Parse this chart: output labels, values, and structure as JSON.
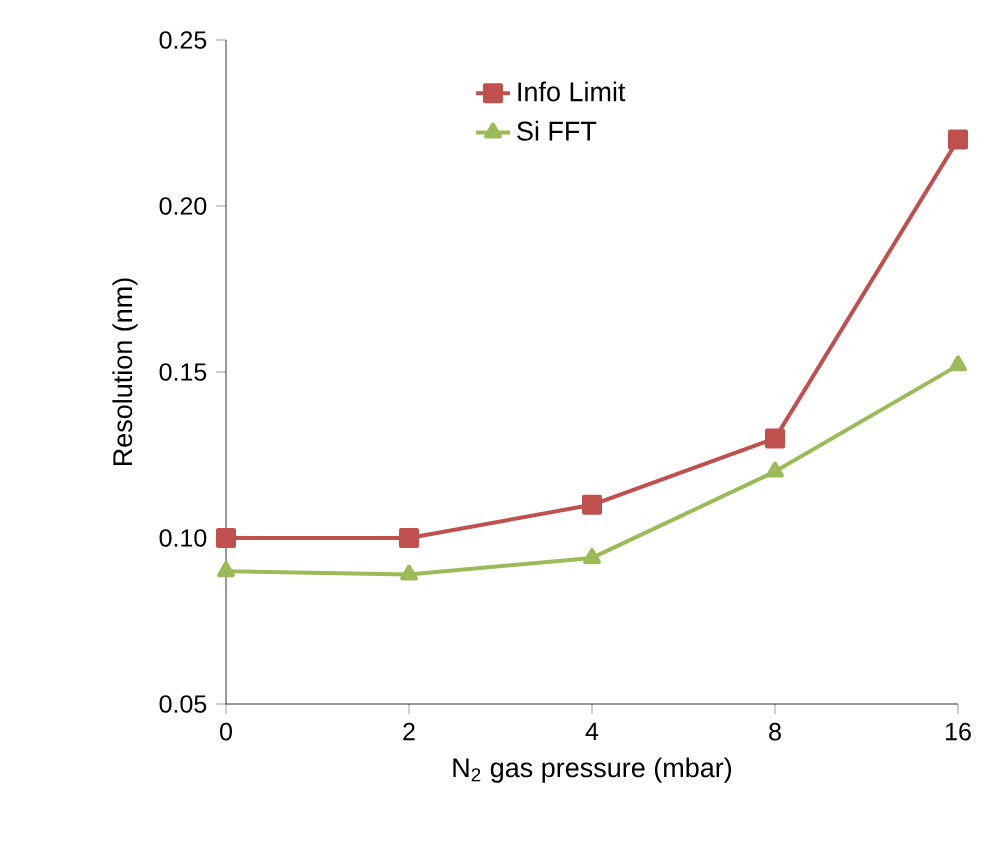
{
  "chart_data": {
    "type": "line",
    "xlabel": "N$_{2}$ gas pressure (mbar)",
    "ylabel": "Resolution (nm)",
    "categories": [
      "0",
      "2",
      "4",
      "8",
      "16"
    ],
    "series": [
      {
        "name": "Info Limit",
        "color": "#c0504d",
        "marker": "square",
        "values": [
          0.1,
          0.1,
          0.11,
          0.13,
          0.22
        ]
      },
      {
        "name": "Si FFT",
        "color": "#9bbb59",
        "marker": "triangle",
        "values": [
          0.09,
          0.089,
          0.094,
          0.12,
          0.152
        ]
      }
    ],
    "ylim": [
      0.05,
      0.25
    ],
    "yticks": [
      {
        "value": 0.05,
        "label": "0.05"
      },
      {
        "value": 0.1,
        "label": "0.10"
      },
      {
        "value": 0.15,
        "label": "0.15"
      },
      {
        "value": 0.2,
        "label": "0.20"
      },
      {
        "value": 0.25,
        "label": "0.25"
      }
    ],
    "legend": "top",
    "line_style": "solid"
  }
}
